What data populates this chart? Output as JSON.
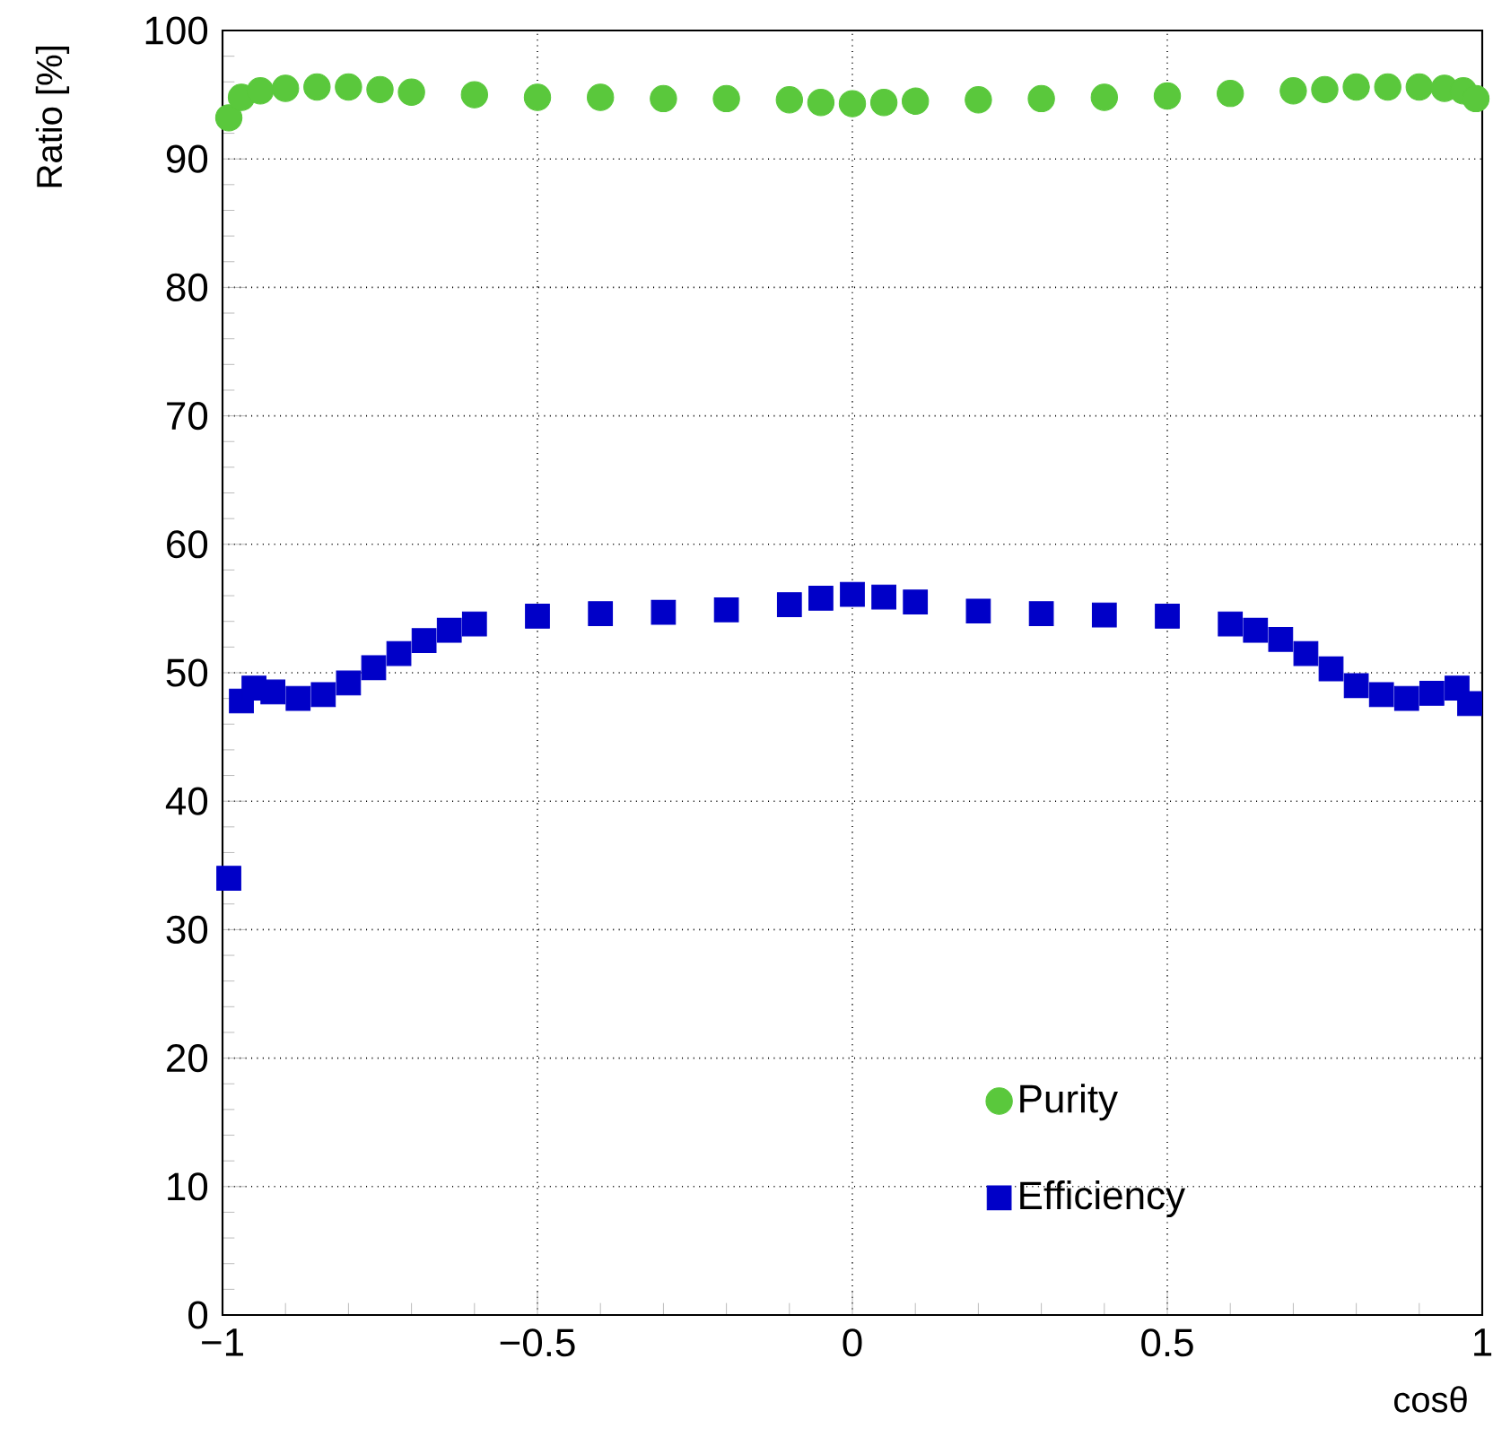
{
  "chart_data": {
    "type": "scatter",
    "xlabel": "cosθ",
    "ylabel": "Ratio [%]",
    "xlim": [
      -1,
      1
    ],
    "ylim": [
      0,
      100
    ],
    "xticks": [
      {
        "value": -1,
        "label": "−1"
      },
      {
        "value": -0.5,
        "label": "−0.5"
      },
      0,
      0.5,
      1
    ],
    "yticks": [
      0,
      10,
      20,
      30,
      40,
      50,
      60,
      70,
      80,
      90,
      100
    ],
    "grid": true,
    "legend": "bottom right",
    "series": [
      {
        "name": "Purity",
        "color": "#5ac83c",
        "marker": "circle",
        "x": [
          -0.99,
          -0.97,
          -0.94,
          -0.9,
          -0.85,
          -0.8,
          -0.75,
          -0.7,
          -0.6,
          -0.5,
          -0.4,
          -0.3,
          -0.2,
          -0.1,
          -0.05,
          0,
          0.05,
          0.1,
          0.2,
          0.3,
          0.4,
          0.5,
          0.6,
          0.7,
          0.75,
          0.8,
          0.85,
          0.9,
          0.94,
          0.97,
          0.99
        ],
        "values": [
          93.2,
          94.8,
          95.3,
          95.5,
          95.6,
          95.6,
          95.4,
          95.2,
          95.0,
          94.8,
          94.8,
          94.7,
          94.7,
          94.6,
          94.4,
          94.3,
          94.4,
          94.5,
          94.6,
          94.7,
          94.8,
          94.9,
          95.1,
          95.3,
          95.4,
          95.6,
          95.6,
          95.6,
          95.5,
          95.3,
          94.7
        ]
      },
      {
        "name": "Efficiency",
        "color": "#0000c8",
        "marker": "square",
        "x": [
          -0.99,
          -0.97,
          -0.95,
          -0.92,
          -0.88,
          -0.84,
          -0.8,
          -0.76,
          -0.72,
          -0.68,
          -0.64,
          -0.6,
          -0.5,
          -0.4,
          -0.3,
          -0.2,
          -0.1,
          -0.05,
          0,
          0.05,
          0.1,
          0.2,
          0.3,
          0.4,
          0.5,
          0.6,
          0.64,
          0.68,
          0.72,
          0.76,
          0.8,
          0.84,
          0.88,
          0.92,
          0.96,
          0.98
        ],
        "values": [
          34.0,
          47.8,
          48.8,
          48.5,
          48.0,
          48.3,
          49.2,
          50.4,
          51.5,
          52.5,
          53.3,
          53.8,
          54.4,
          54.6,
          54.7,
          54.9,
          55.3,
          55.8,
          56.1,
          55.9,
          55.5,
          54.8,
          54.6,
          54.5,
          54.4,
          53.8,
          53.3,
          52.6,
          51.5,
          50.3,
          49.0,
          48.3,
          48.0,
          48.4,
          48.8,
          47.6
        ]
      }
    ]
  }
}
